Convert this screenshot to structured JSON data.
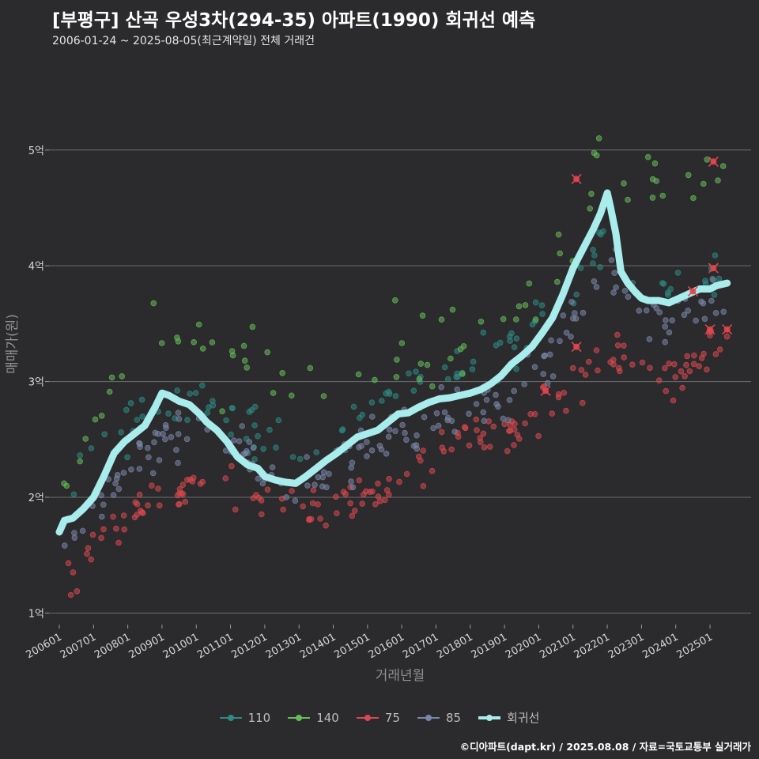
{
  "header": {
    "title": "[부평구] 산곡 우성3차(294-35) 아파트(1990) 회귀선 예측",
    "subtitle": "2006-01-24 ~ 2025-08-05(최근계약일) 전체 거래건",
    "credit": "©디아파트(dapt.kr) / 2025.08.08 / 자료=국토교통부 실거래가"
  },
  "colors": {
    "background": "#2b2a2d",
    "grid": "#6e6e6e",
    "s110": "#2e8b83",
    "s140": "#66bb5a",
    "s75": "#d9484f",
    "s85": "#7a86a8",
    "regression": "#a8ecec"
  },
  "chart_data": {
    "type": "scatter",
    "title": "[부평구] 산곡 우성3차(294-35) 아파트(1990) 회귀선 예측",
    "xlabel": "거래년월",
    "ylabel": "매매가(원)",
    "xlim": [
      2005.7,
      2026.2
    ],
    "ylim": [
      0.9,
      5.75
    ],
    "x_ticks": [
      "200601",
      "200701",
      "200801",
      "200901",
      "201001",
      "201101",
      "201201",
      "201301",
      "201401",
      "201501",
      "201601",
      "201701",
      "201801",
      "201901",
      "202001",
      "202101",
      "202201",
      "202301",
      "202401",
      "202501"
    ],
    "y_ticks": [
      "1억",
      "2억",
      "3억",
      "4억",
      "5억"
    ],
    "grid": "horizontal",
    "legend_position": "bottom",
    "series": [
      {
        "name": "110",
        "color": "#2e8b83",
        "trend": [
          [
            2006.1,
            2.0
          ],
          [
            2007.0,
            2.4
          ],
          [
            2008.0,
            2.6
          ],
          [
            2009.0,
            2.8
          ],
          [
            2010.0,
            2.75
          ],
          [
            2011.0,
            2.7
          ],
          [
            2012.0,
            2.5
          ],
          [
            2013.0,
            2.45
          ],
          [
            2014.0,
            2.55
          ],
          [
            2015.0,
            2.75
          ],
          [
            2016.0,
            2.95
          ],
          [
            2017.0,
            3.05
          ],
          [
            2018.0,
            3.15
          ],
          [
            2019.0,
            3.25
          ],
          [
            2020.0,
            3.45
          ],
          [
            2021.0,
            3.9
          ],
          [
            2022.0,
            4.3
          ],
          [
            2023.0,
            3.9
          ],
          [
            2024.0,
            3.8
          ],
          [
            2025.0,
            3.9
          ]
        ],
        "spread": 0.14,
        "density": 6
      },
      {
        "name": "140",
        "color": "#66bb5a",
        "trend": [
          [
            2006.1,
            2.3
          ],
          [
            2007.0,
            2.7
          ],
          [
            2008.0,
            3.2
          ],
          [
            2009.0,
            3.3
          ],
          [
            2010.0,
            3.3
          ],
          [
            2011.0,
            3.2
          ],
          [
            2012.0,
            3.05
          ],
          [
            2013.0,
            3.0
          ],
          [
            2014.0,
            2.95
          ],
          [
            2015.0,
            3.1
          ],
          [
            2016.0,
            3.25
          ],
          [
            2017.0,
            3.3
          ],
          [
            2018.0,
            3.4
          ],
          [
            2019.0,
            3.5
          ],
          [
            2020.0,
            3.7
          ],
          [
            2021.0,
            4.4
          ],
          [
            2022.0,
            4.9
          ],
          [
            2023.0,
            4.7
          ],
          [
            2024.0,
            4.6
          ],
          [
            2025.0,
            4.7
          ]
        ],
        "spread": 0.25,
        "density": 4
      },
      {
        "name": "75",
        "color": "#d9484f",
        "trend": [
          [
            2006.1,
            1.2
          ],
          [
            2007.0,
            1.6
          ],
          [
            2008.0,
            1.85
          ],
          [
            2009.0,
            2.05
          ],
          [
            2010.0,
            2.1
          ],
          [
            2011.0,
            2.05
          ],
          [
            2012.0,
            1.95
          ],
          [
            2013.0,
            1.85
          ],
          [
            2014.0,
            1.9
          ],
          [
            2015.0,
            2.05
          ],
          [
            2016.0,
            2.25
          ],
          [
            2017.0,
            2.4
          ],
          [
            2018.0,
            2.5
          ],
          [
            2019.0,
            2.55
          ],
          [
            2020.0,
            2.75
          ],
          [
            2021.0,
            2.95
          ],
          [
            2022.0,
            3.3
          ],
          [
            2023.0,
            3.1
          ],
          [
            2024.0,
            3.05
          ],
          [
            2025.0,
            3.25
          ]
        ],
        "spread": 0.12,
        "density": 9
      },
      {
        "name": "85",
        "color": "#7a86a8",
        "trend": [
          [
            2006.1,
            1.5
          ],
          [
            2007.0,
            1.9
          ],
          [
            2008.0,
            2.25
          ],
          [
            2009.0,
            2.5
          ],
          [
            2010.0,
            2.55
          ],
          [
            2011.0,
            2.45
          ],
          [
            2012.0,
            2.25
          ],
          [
            2013.0,
            2.1
          ],
          [
            2014.0,
            2.2
          ],
          [
            2015.0,
            2.4
          ],
          [
            2016.0,
            2.6
          ],
          [
            2017.0,
            2.7
          ],
          [
            2018.0,
            2.75
          ],
          [
            2019.0,
            2.85
          ],
          [
            2020.0,
            3.1
          ],
          [
            2021.0,
            3.5
          ],
          [
            2022.0,
            4.0
          ],
          [
            2023.0,
            3.6
          ],
          [
            2024.0,
            3.55
          ],
          [
            2025.0,
            3.7
          ]
        ],
        "spread": 0.13,
        "density": 9
      }
    ],
    "regression": {
      "name": "회귀선",
      "x": [
        2006.0,
        2006.15,
        2006.4,
        2006.7,
        2007.0,
        2007.3,
        2007.6,
        2007.9,
        2008.2,
        2008.5,
        2008.8,
        2009.0,
        2009.2,
        2009.5,
        2009.8,
        2010.1,
        2010.3,
        2010.6,
        2010.9,
        2011.2,
        2011.5,
        2011.8,
        2012.0,
        2012.3,
        2012.6,
        2012.9,
        2013.2,
        2013.5,
        2013.8,
        2014.1,
        2014.4,
        2014.7,
        2015.0,
        2015.3,
        2015.6,
        2015.9,
        2016.2,
        2016.5,
        2016.8,
        2017.1,
        2017.4,
        2017.7,
        2018.0,
        2018.3,
        2018.6,
        2018.9,
        2019.2,
        2019.5,
        2019.8,
        2020.1,
        2020.4,
        2020.7,
        2021.0,
        2021.3,
        2021.6,
        2021.8,
        2022.0,
        2022.1,
        2022.25,
        2022.4,
        2022.6,
        2022.8,
        2023.0,
        2023.2,
        2023.5,
        2023.8,
        2024.1,
        2024.4,
        2024.7,
        2025.0,
        2025.2,
        2025.5
      ],
      "y": [
        1.7,
        1.8,
        1.82,
        1.9,
        2.0,
        2.18,
        2.38,
        2.48,
        2.55,
        2.62,
        2.78,
        2.9,
        2.88,
        2.83,
        2.8,
        2.72,
        2.65,
        2.58,
        2.48,
        2.35,
        2.28,
        2.25,
        2.18,
        2.15,
        2.13,
        2.12,
        2.18,
        2.25,
        2.32,
        2.38,
        2.45,
        2.52,
        2.55,
        2.58,
        2.65,
        2.72,
        2.73,
        2.78,
        2.82,
        2.85,
        2.86,
        2.88,
        2.9,
        2.93,
        2.98,
        3.05,
        3.15,
        3.22,
        3.3,
        3.42,
        3.55,
        3.75,
        3.98,
        4.15,
        4.32,
        4.45,
        4.63,
        4.5,
        4.28,
        3.95,
        3.85,
        3.78,
        3.72,
        3.7,
        3.7,
        3.68,
        3.72,
        3.76,
        3.8,
        3.8,
        3.83,
        3.85
      ]
    },
    "highlighted": [
      [
        2020.2,
        2.92
      ],
      [
        2021.1,
        3.3
      ],
      [
        2021.1,
        4.75
      ],
      [
        2024.5,
        3.78
      ],
      [
        2025.0,
        3.45
      ],
      [
        2025.1,
        3.98
      ],
      [
        2025.1,
        4.9
      ],
      [
        2025.5,
        3.45
      ]
    ]
  },
  "legend": {
    "items": [
      {
        "label": "110",
        "color": "#2e8b83"
      },
      {
        "label": "140",
        "color": "#66bb5a"
      },
      {
        "label": "75",
        "color": "#d9484f"
      },
      {
        "label": "85",
        "color": "#7a86a8"
      },
      {
        "label": "회귀선",
        "color": "#a8ecec"
      }
    ]
  }
}
